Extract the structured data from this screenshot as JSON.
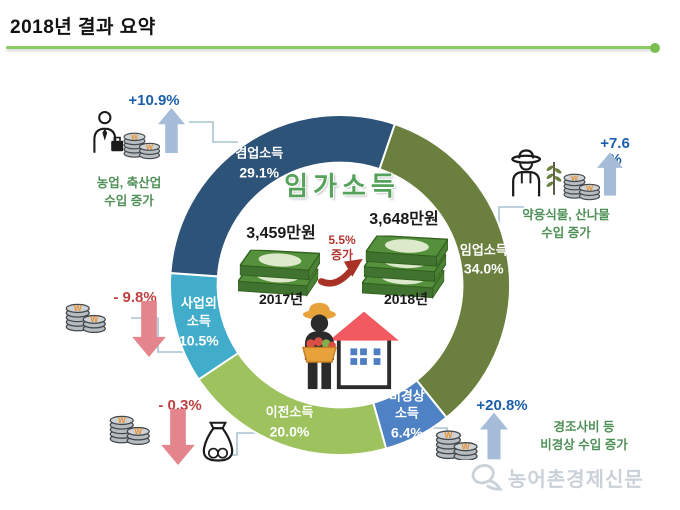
{
  "page_title": "2018년 결과 요약",
  "watermark": "농어촌경제신문",
  "center": {
    "heading": "임가소득",
    "left": {
      "value": "3,459만원",
      "year": "2017년"
    },
    "right": {
      "value": "3,648만원",
      "year": "2018년"
    },
    "change": "5.5%\n증가"
  },
  "chart_data": {
    "type": "pie",
    "subtype": "donut",
    "title": "임가소득",
    "unit": "%",
    "direction": "clockwise",
    "start_angle_deg": 18.8,
    "inner_radius_ratio": 0.72,
    "segments": [
      {
        "label": "임업소득",
        "display_label": "임업소득",
        "value": 34.0,
        "pct_label": "34.0%",
        "color": "#6B7F3E"
      },
      {
        "label": "비경상소득",
        "display_label": "비경상\n소득",
        "value": 6.4,
        "pct_label": "6.4%",
        "color": "#4E82C4"
      },
      {
        "label": "이전소득",
        "display_label": "이전소득",
        "value": 20.0,
        "pct_label": "20.0%",
        "color": "#9DC25E"
      },
      {
        "label": "사업외소득",
        "display_label": "사업외\n소득",
        "value": 10.5,
        "pct_label": "10.5%",
        "color": "#41ADCB"
      },
      {
        "label": "겸업소득",
        "display_label": "겸업소득",
        "value": 29.1,
        "pct_label": "29.1%",
        "color": "#2E5378"
      }
    ],
    "center_values": {
      "year_2017_manwon": 3459,
      "year_2018_manwon": 3648,
      "change_pct": 5.5
    }
  },
  "annotations": [
    {
      "id": "farm",
      "pct": "+10.9%",
      "trend": "up",
      "target_segment": "겸업소득",
      "caption": "농업, 축산업\n수입 증가"
    },
    {
      "id": "forest",
      "pct": "+7.6\n%",
      "trend": "up",
      "target_segment": "임업소득",
      "caption": "약용식물, 산나물\n수입 증가"
    },
    {
      "id": "nonbusiness",
      "pct": "- 9.8%",
      "trend": "down",
      "target_segment": "사업외소득",
      "caption": ""
    },
    {
      "id": "transfer",
      "pct": "- 0.3%",
      "trend": "down",
      "target_segment": "이전소득",
      "caption": ""
    },
    {
      "id": "nonrecurring",
      "pct": "+20.8%",
      "trend": "up",
      "target_segment": "비경상소득",
      "caption": "경조사비 등\n비경상 수입 증가"
    }
  ],
  "colors": {
    "up_blue": "#1C5FAB",
    "down_red": "#BE4040",
    "caption_green": "#4F9058",
    "title_underline_green": "#8CC863",
    "center_heading_green": "#55A25B",
    "connector_gray_blue": "#AAC2D2",
    "watermark_gray": "#CBD1D9"
  }
}
